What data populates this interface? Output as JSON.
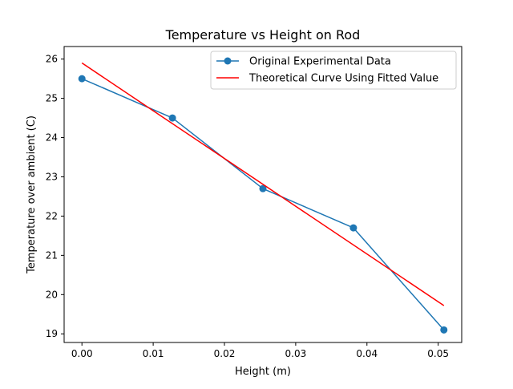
{
  "chart_data": {
    "type": "line",
    "title": "Temperature vs Height on Rod",
    "xlabel": "Height (m)",
    "ylabel": "Temperature over ambient (C)",
    "xlim": [
      -0.0025,
      0.0533
    ],
    "ylim": [
      18.78,
      26.32
    ],
    "x_ticks": [
      0.0,
      0.01,
      0.02,
      0.03,
      0.04,
      0.05
    ],
    "x_tick_labels": [
      "0.00",
      "0.01",
      "0.02",
      "0.03",
      "0.04",
      "0.05"
    ],
    "y_ticks": [
      19,
      20,
      21,
      22,
      23,
      24,
      25,
      26
    ],
    "y_tick_labels": [
      "19",
      "20",
      "21",
      "22",
      "23",
      "24",
      "25",
      "26"
    ],
    "grid": false,
    "legend_position": "top-right",
    "series": [
      {
        "name": "Original Experimental Data",
        "color": "#1f77b4",
        "marker": "circle",
        "x": [
          0.0,
          0.0127,
          0.0254,
          0.0381,
          0.0508
        ],
        "y": [
          25.5,
          24.5,
          22.7,
          21.7,
          19.1
        ]
      },
      {
        "name": "Theoretical Curve Using Fitted Value",
        "color": "#ff0000",
        "marker": "none",
        "x": [
          0.0,
          0.0508
        ],
        "y": [
          25.9,
          19.72
        ]
      }
    ]
  }
}
